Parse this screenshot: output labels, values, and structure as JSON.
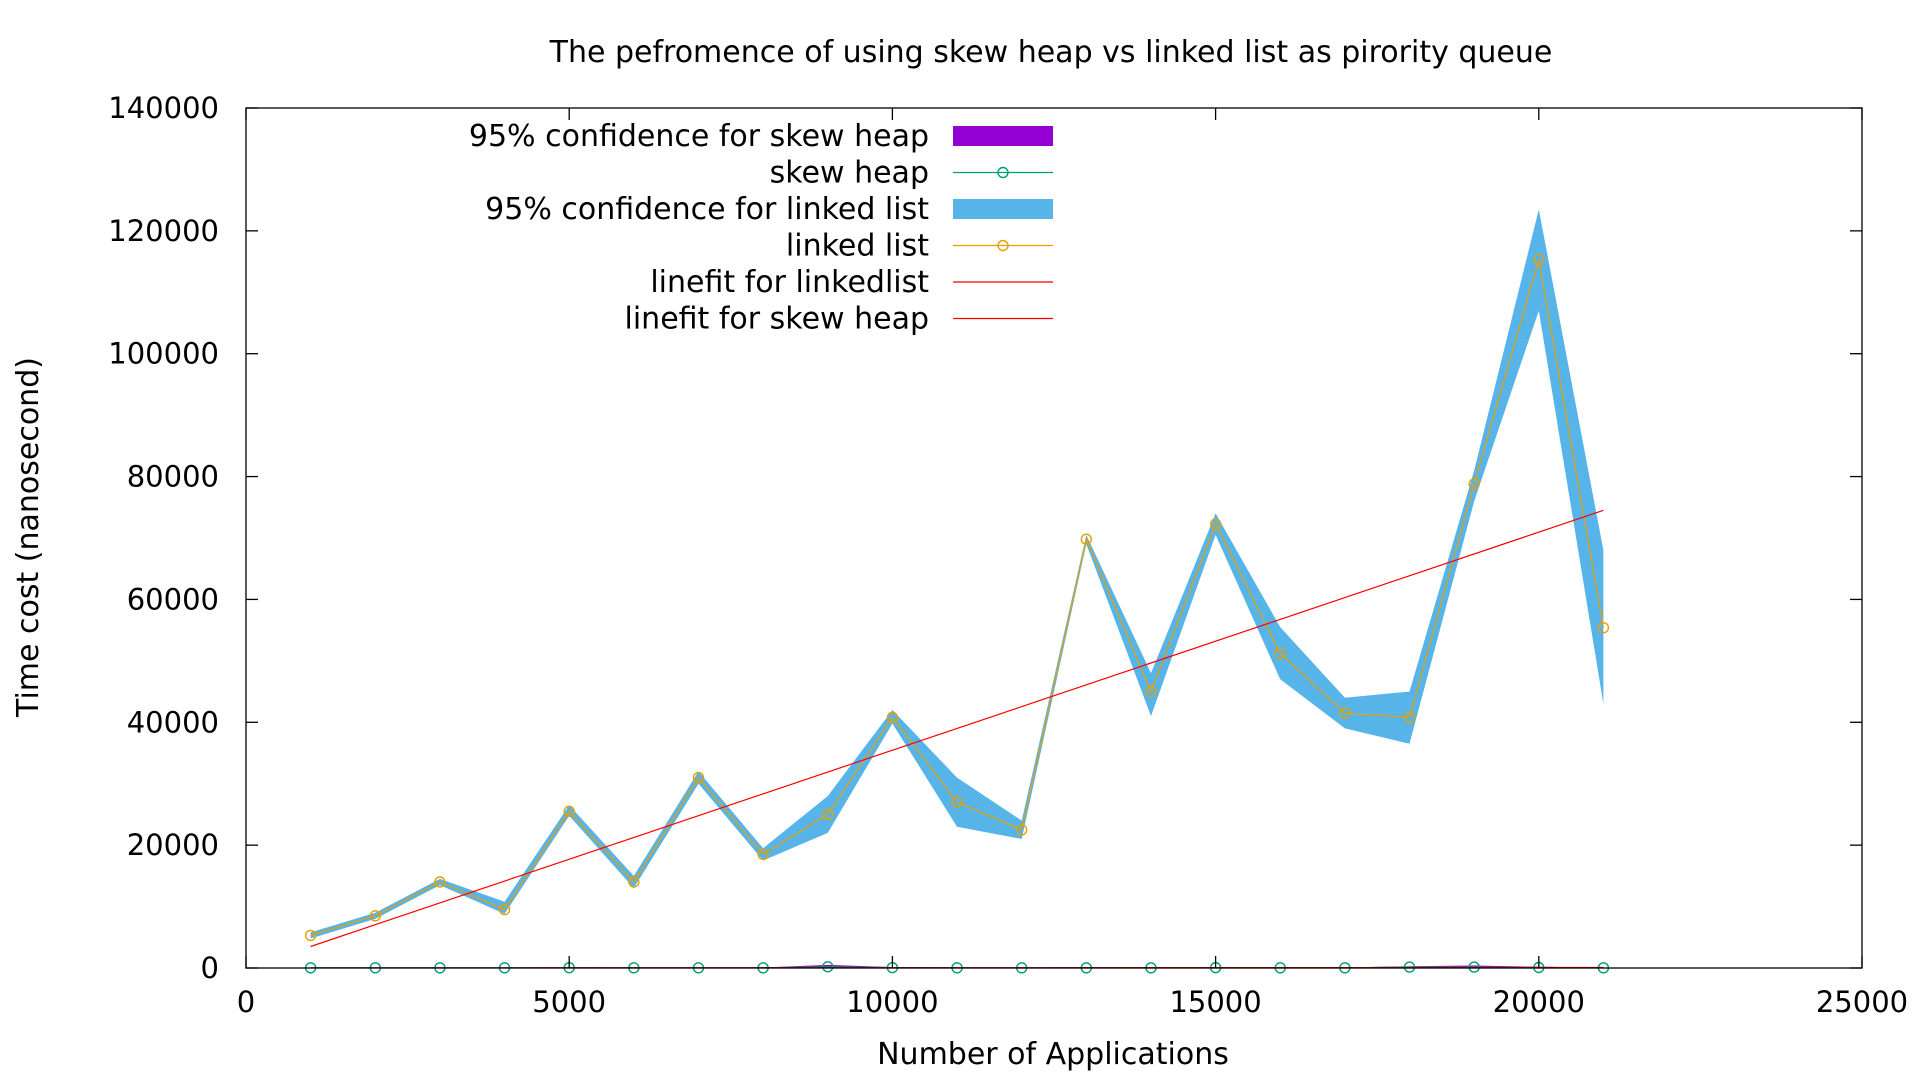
{
  "chart_data": {
    "type": "line",
    "title": "The pefromence of using skew heap vs linked list as pirority queue",
    "xlabel": "Number of Applications",
    "ylabel": "Time cost (nanosecond)",
    "xlim": [
      0,
      25000
    ],
    "ylim": [
      0,
      140000
    ],
    "xticks": [
      "0",
      "5000",
      "10000",
      "15000",
      "20000",
      "25000"
    ],
    "yticks": [
      "0",
      "20000",
      "40000",
      "60000",
      "80000",
      "100000",
      "120000",
      "140000"
    ],
    "grid": false,
    "legend_position": "top-center",
    "x": [
      1000,
      2000,
      3000,
      4000,
      5000,
      6000,
      7000,
      8000,
      9000,
      10000,
      11000,
      12000,
      13000,
      14000,
      15000,
      16000,
      17000,
      18000,
      19000,
      20000,
      21000
    ],
    "series": [
      {
        "name": "95% confidence for skew heap",
        "kind": "band",
        "color": "#9400d3",
        "lower": [
          0,
          0,
          0,
          0,
          0,
          0,
          0,
          0,
          0,
          0,
          0,
          0,
          0,
          0,
          0,
          0,
          0,
          0,
          0,
          0,
          0
        ],
        "upper": [
          80,
          80,
          80,
          80,
          100,
          80,
          80,
          80,
          500,
          150,
          80,
          80,
          80,
          80,
          150,
          80,
          80,
          300,
          400,
          200,
          80
        ]
      },
      {
        "name": "skew heap",
        "kind": "line-points",
        "color": "#009e73",
        "values": [
          30,
          30,
          30,
          30,
          50,
          30,
          30,
          30,
          200,
          60,
          30,
          30,
          30,
          30,
          60,
          30,
          30,
          150,
          150,
          80,
          30
        ]
      },
      {
        "name": "95% confidence for linked list",
        "kind": "band",
        "color": "#56b4e9",
        "lower": [
          4800,
          8000,
          13500,
          8800,
          24800,
          13000,
          30000,
          17500,
          22000,
          39800,
          23000,
          21000,
          69000,
          41000,
          70500,
          47000,
          39000,
          36500,
          76000,
          107000,
          43000
        ],
        "upper": [
          5800,
          9000,
          14500,
          10800,
          26500,
          15000,
          32000,
          19500,
          28000,
          42000,
          31000,
          24000,
          70500,
          48000,
          74000,
          55500,
          44000,
          45000,
          81000,
          123500,
          68000
        ]
      },
      {
        "name": "linked list",
        "kind": "line-points",
        "color": "#e69f00",
        "values": [
          5300,
          8500,
          14000,
          9500,
          25500,
          14000,
          31000,
          18500,
          25000,
          40800,
          27000,
          22500,
          69800,
          45000,
          72300,
          51200,
          41500,
          40800,
          78800,
          115300,
          55400
        ]
      },
      {
        "name": "linefit for linkedlist",
        "kind": "line",
        "color": "#ff0000",
        "fit_x": [
          1000,
          21000
        ],
        "fit_y": [
          3500,
          74500
        ]
      },
      {
        "name": "linefit for skew heap",
        "kind": "line",
        "color": "#ff0000",
        "fit_x": [
          1000,
          21000
        ],
        "fit_y": [
          20,
          80
        ]
      }
    ]
  }
}
